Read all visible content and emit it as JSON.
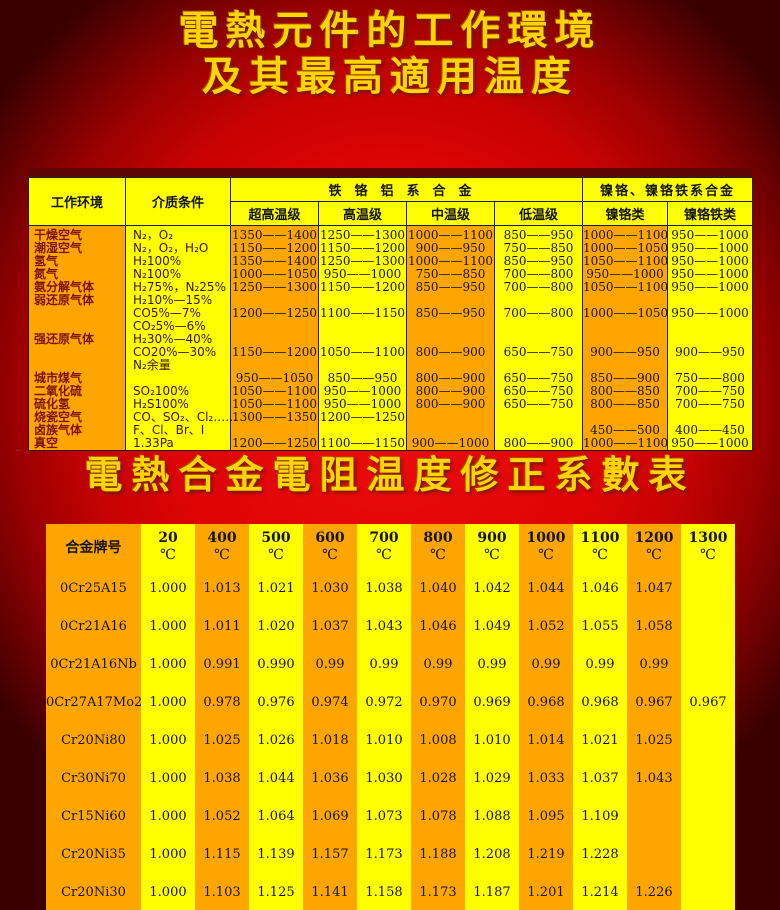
{
  "page": {
    "title_line1": "電熱元件的工作環境",
    "title_line2": "及其最高適用温度",
    "subtitle": "電熱合金電阻温度修正系數表"
  },
  "colors": {
    "background_red": "#de0404",
    "background_dark_edge": "#3a0000",
    "title_gold": "#ffd400",
    "cell_orange": "#ffa500",
    "cell_yellow": "#ffff00",
    "table_border": "#1d1d1d",
    "top_bar_maroon": "#5e0505",
    "env_label_red": "#7c1402",
    "value_black": "#141414"
  },
  "table1": {
    "header": {
      "col_env": "工作环境",
      "col_medium": "介质条件",
      "group_fecral": "铁铬铝系合金",
      "group_nicr": "镍铬、镍铬铁系合金",
      "sub_cols": [
        "超高温级",
        "高温级",
        "中温级",
        "低温级",
        "镍铬类",
        "镍铬铁类"
      ]
    },
    "lines": [
      {
        "env": "干燥空气",
        "medium": "N₂，O₂",
        "v": [
          "1350——1400",
          "1250——1300",
          "1000——1100",
          "850——950",
          "1000——1100",
          "950——1000"
        ]
      },
      {
        "env": "潮湿空气",
        "medium": "N₂，O₂，H₂O",
        "v": [
          "1150——1200",
          "1150——1200",
          "900——950",
          "750——850",
          "1000——1050",
          "950——1000"
        ]
      },
      {
        "env": "氢气",
        "medium": "H₂100%",
        "v": [
          "1350——1400",
          "1250——1300",
          "1000——1100",
          "850——950",
          "1050——1100",
          "950——1000"
        ]
      },
      {
        "env": "氮气",
        "medium": "N₂100%",
        "v": [
          "1000——1050",
          "950——1000",
          "750——850",
          "700——800",
          "950——1000",
          "950——1000"
        ]
      },
      {
        "env": "氨分解气体",
        "medium": "H₂75%，N₂25%",
        "v": [
          "1250——1300",
          "1150——1200",
          "850——950",
          "700——800",
          "1050——1100",
          "950——1000"
        ]
      },
      {
        "env": "弱还原气体",
        "medium": "H₂10%—15%",
        "v": [
          "",
          "",
          "",
          "",
          "",
          ""
        ]
      },
      {
        "env": "",
        "medium": "CO5%—7%",
        "v": [
          "1200——1250",
          "1100——1150",
          "850——950",
          "700——800",
          "1000——1050",
          "950——1000"
        ]
      },
      {
        "env": "",
        "medium": "CO₂5%—6%",
        "v": [
          "",
          "",
          "",
          "",
          "",
          ""
        ]
      },
      {
        "env": "强还原气体",
        "medium": "H₂30%—40%",
        "v": [
          "",
          "",
          "",
          "",
          "",
          ""
        ]
      },
      {
        "env": "",
        "medium": "CO20%—30%",
        "v": [
          "1150——1200",
          "1050——1100",
          "800——900",
          "650——750",
          "900——950",
          "900——950"
        ]
      },
      {
        "env": "",
        "medium": "N₂余量",
        "v": [
          "",
          "",
          "",
          "",
          "",
          ""
        ]
      },
      {
        "env": "城市煤气",
        "medium": "",
        "v": [
          "950——1050",
          "850——950",
          "800——900",
          "650——750",
          "850——900",
          "750——800"
        ]
      },
      {
        "env": "二氧化硫",
        "medium": "SO₂100%",
        "v": [
          "1050——1100",
          "950——1000",
          "800——900",
          "650——750",
          "800——850",
          "700——750"
        ]
      },
      {
        "env": "硫化氢",
        "medium": "H₂S100%",
        "v": [
          "1050——1100",
          "950——1000",
          "800——900",
          "650——750",
          "800——850",
          "700——750"
        ]
      },
      {
        "env": "烧瓷空气",
        "medium": "CO、SO₂、Cl₂……",
        "v": [
          "1300——1350",
          "1200——1250",
          "",
          "",
          "",
          ""
        ]
      },
      {
        "env": "卤族气体",
        "medium": "F、Cl、Br、I",
        "v": [
          "",
          "",
          "",
          "",
          "450——500",
          "400——450"
        ]
      },
      {
        "env": "真空",
        "medium": "1.33Pa",
        "v": [
          "1200——1250",
          "1100——1150",
          "900——1000",
          "800——900",
          "1000——1100",
          "950——1000"
        ]
      }
    ]
  },
  "table2": {
    "header_col0": "合金牌号",
    "deg": "℃",
    "temps": [
      "20",
      "400",
      "500",
      "600",
      "700",
      "800",
      "900",
      "1000",
      "1100",
      "1200",
      "1300"
    ],
    "rows": [
      {
        "alloy": "0Cr25A15",
        "values": [
          "1.000",
          "1.013",
          "1.021",
          "1.030",
          "1.038",
          "1.040",
          "1.042",
          "1.044",
          "1.046",
          "1.047",
          ""
        ]
      },
      {
        "alloy": "0Cr21A16",
        "values": [
          "1.000",
          "1.011",
          "1.020",
          "1.037",
          "1.043",
          "1.046",
          "1.049",
          "1.052",
          "1.055",
          "1.058",
          ""
        ]
      },
      {
        "alloy": "0Cr21A16Nb",
        "values": [
          "1.000",
          "0.991",
          "0.990",
          "0.99",
          "0.99",
          "0.99",
          "0.99",
          "0.99",
          "0.99",
          "0.99",
          ""
        ]
      },
      {
        "alloy": "0Cr27A17Mo2",
        "values": [
          "1.000",
          "0.978",
          "0.976",
          "0.974",
          "0.972",
          "0.970",
          "0.969",
          "0.968",
          "0.968",
          "0.967",
          "0.967"
        ]
      },
      {
        "alloy": "Cr20Ni80",
        "values": [
          "1.000",
          "1.025",
          "1.026",
          "1.018",
          "1.010",
          "1.008",
          "1.010",
          "1.014",
          "1.021",
          "1.025",
          ""
        ]
      },
      {
        "alloy": "Cr30Ni70",
        "values": [
          "1.000",
          "1.038",
          "1.044",
          "1.036",
          "1.030",
          "1.028",
          "1.029",
          "1.033",
          "1.037",
          "1.043",
          ""
        ]
      },
      {
        "alloy": "Cr15Ni60",
        "values": [
          "1.000",
          "1.052",
          "1.064",
          "1.069",
          "1.073",
          "1.078",
          "1.088",
          "1.095",
          "1.109",
          "",
          ""
        ]
      },
      {
        "alloy": "Cr20Ni35",
        "values": [
          "1.000",
          "1.115",
          "1.139",
          "1.157",
          "1.173",
          "1.188",
          "1.208",
          "1.219",
          "1.228",
          "",
          ""
        ]
      },
      {
        "alloy": "Cr20Ni30",
        "values": [
          "1.000",
          "1.103",
          "1.125",
          "1.141",
          "1.158",
          "1.173",
          "1.187",
          "1.201",
          "1.214",
          "1.226",
          ""
        ]
      }
    ]
  }
}
